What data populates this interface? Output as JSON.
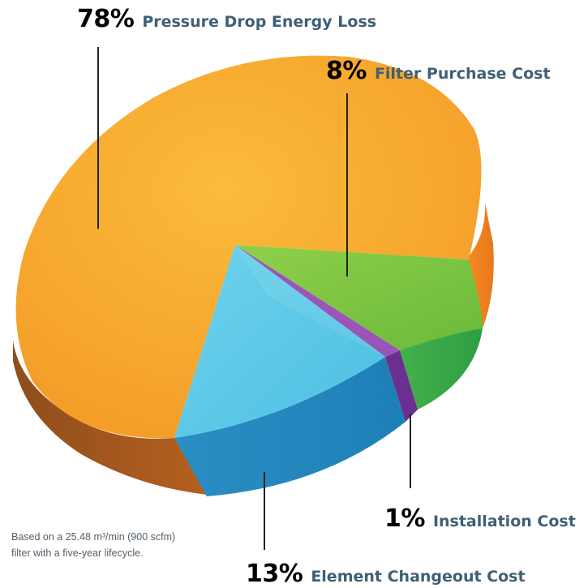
{
  "chart_data": {
    "type": "pie",
    "slices": [
      {
        "label": "Pressure Drop Energy Loss",
        "value": 78,
        "value_label": "78%",
        "color": "#f6a12b"
      },
      {
        "label": "Filter Purchase Cost",
        "value": 8,
        "value_label": "8%",
        "color": "#7cc43f"
      },
      {
        "label": "Installation Cost",
        "value": 1,
        "value_label": "1%",
        "color": "#8a48a8"
      },
      {
        "label": "Element Changeout Cost",
        "value": 13,
        "value_label": "13%",
        "color": "#5ac8e6"
      }
    ]
  },
  "footnote": {
    "line1": "Based on a 25.48 m³/min (900 scfm)",
    "line2": "filter with a five-year lifecycle."
  }
}
